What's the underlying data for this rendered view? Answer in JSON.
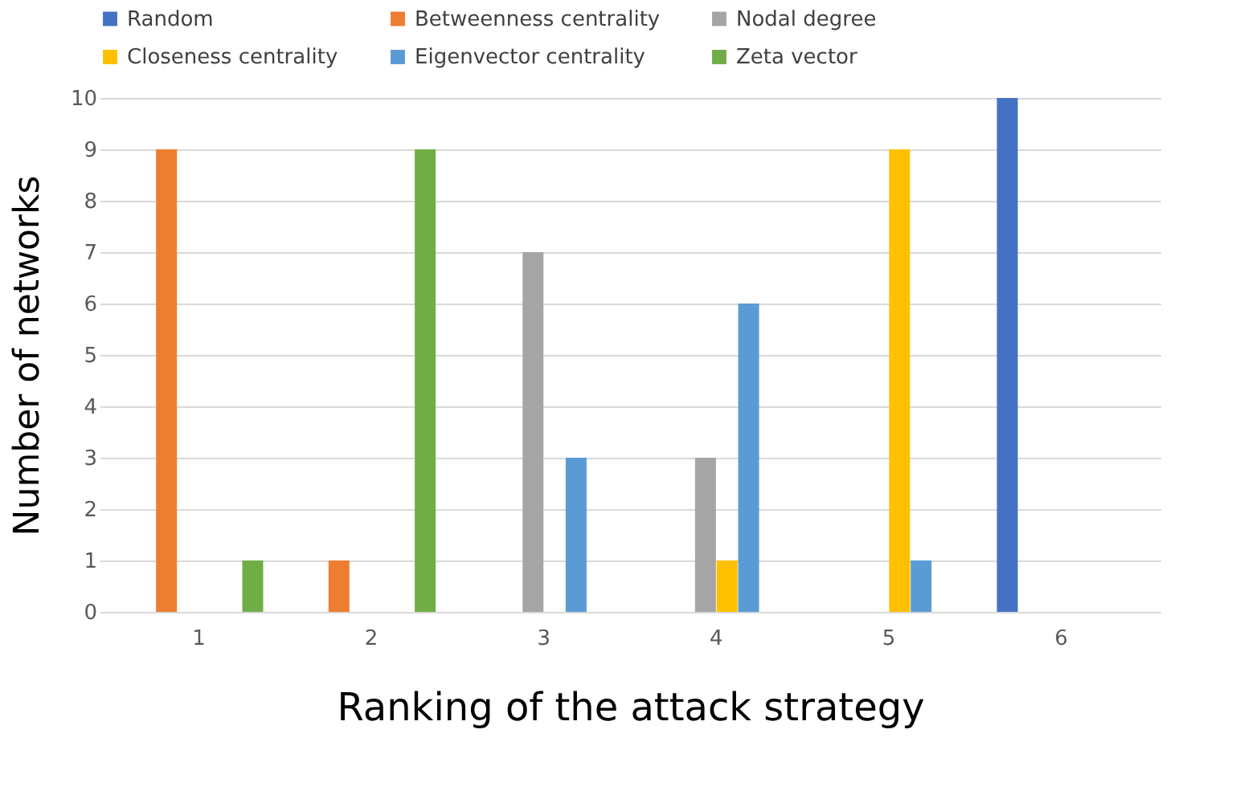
{
  "chart_data": {
    "type": "bar",
    "xlabel": "Ranking of the attack strategy",
    "ylabel": "Number of networks",
    "categories": [
      "1",
      "2",
      "3",
      "4",
      "5",
      "6"
    ],
    "series": [
      {
        "name": "Random",
        "color": "#4472c4",
        "values": [
          0,
          0,
          0,
          0,
          0,
          10
        ]
      },
      {
        "name": "Betweenness centrality",
        "color": "#ed7d31",
        "values": [
          9,
          1,
          0,
          0,
          0,
          0
        ]
      },
      {
        "name": "Nodal degree",
        "color": "#a5a5a5",
        "values": [
          0,
          0,
          7,
          3,
          0,
          0
        ]
      },
      {
        "name": "Closeness centrality",
        "color": "#ffc000",
        "values": [
          0,
          0,
          0,
          1,
          9,
          0
        ]
      },
      {
        "name": "Eigenvector centrality",
        "color": "#5b9bd5",
        "values": [
          0,
          0,
          3,
          6,
          1,
          0
        ]
      },
      {
        "name": "Zeta vector",
        "color": "#70ad47",
        "values": [
          1,
          9,
          0,
          0,
          0,
          0
        ]
      }
    ],
    "ylim": [
      0,
      10
    ],
    "yticks": [
      0,
      1,
      2,
      3,
      4,
      5,
      6,
      7,
      8,
      9,
      10
    ],
    "grid": "y",
    "legend": "top"
  }
}
